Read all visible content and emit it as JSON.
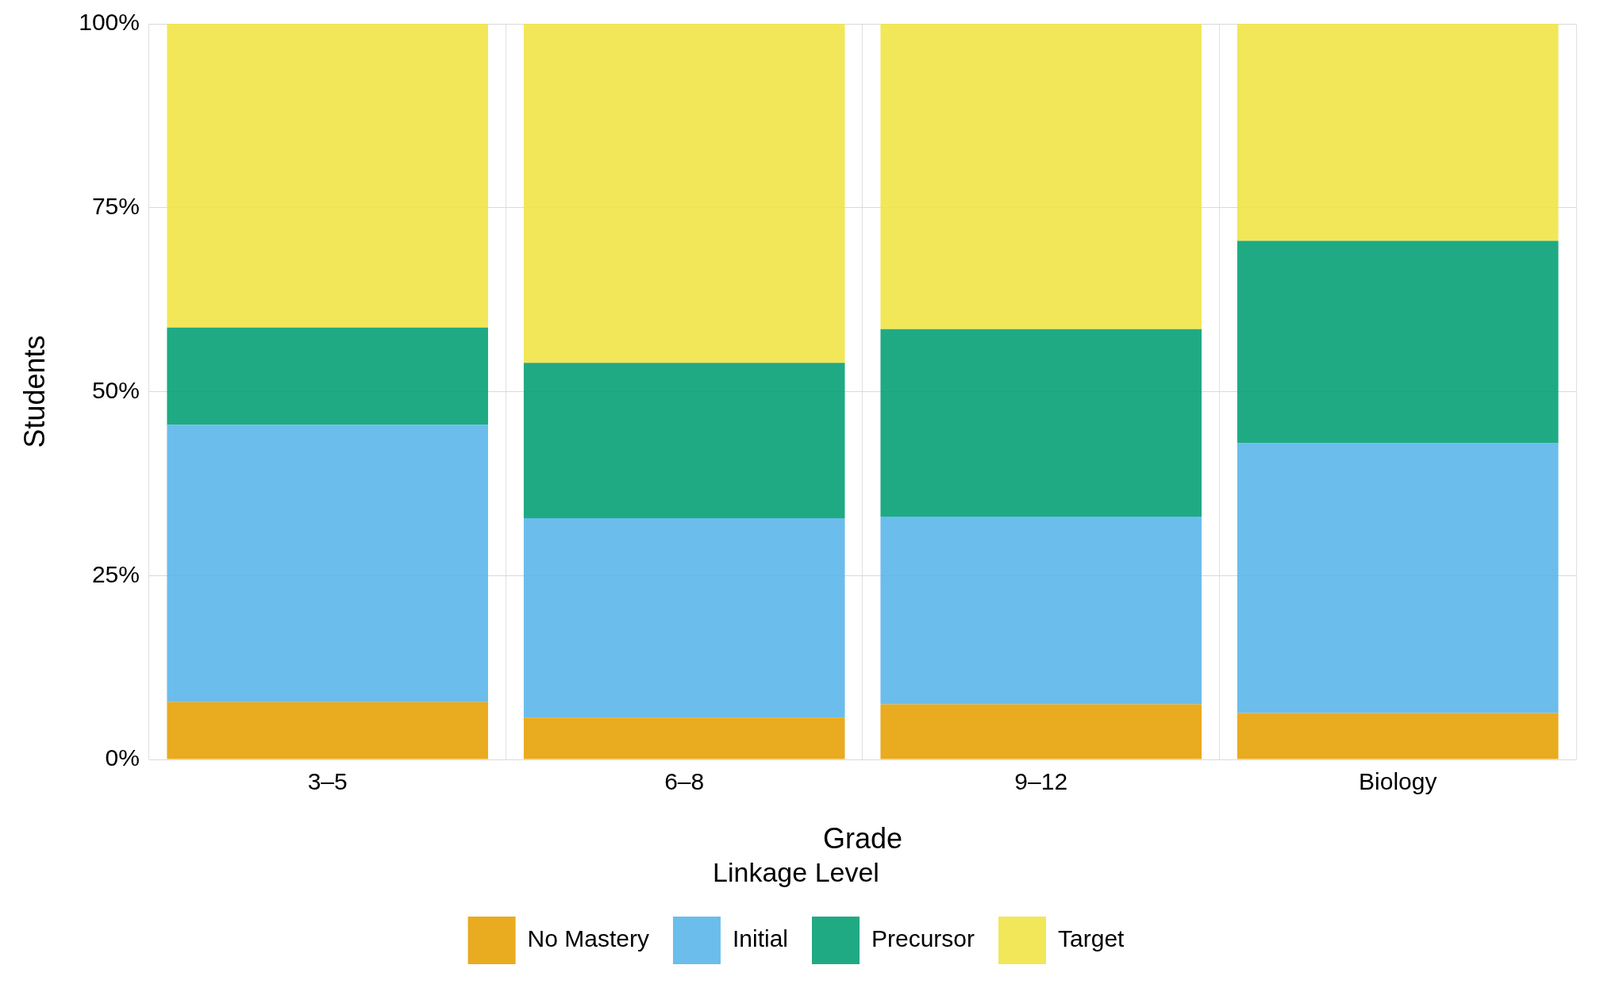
{
  "chart_data": {
    "type": "bar",
    "stacked": true,
    "x_label": "Grade",
    "y_label": "Students",
    "legend_title": "Linkage Level",
    "legend": "bottom",
    "grid": true,
    "categories": [
      "3–5",
      "6–8",
      "9–12",
      "Biology"
    ],
    "series": [
      {
        "name": "No Mastery",
        "color": "#E69F00",
        "values": [
          7.8,
          5.7,
          7.5,
          6.3
        ]
      },
      {
        "name": "Initial",
        "color": "#56B4E9",
        "values": [
          37.7,
          27.1,
          25.5,
          36.7
        ]
      },
      {
        "name": "Precursor",
        "color": "#009E73",
        "values": [
          13.2,
          21.1,
          25.5,
          27.5
        ]
      },
      {
        "name": "Target",
        "color": "#F0E442",
        "values": [
          41.3,
          46.1,
          41.5,
          29.5
        ]
      }
    ],
    "ylim": [
      0,
      100
    ],
    "yticks": [
      {
        "value": 0,
        "label": "0%"
      },
      {
        "value": 25,
        "label": "25%"
      },
      {
        "value": 50,
        "label": "50%"
      },
      {
        "value": 75,
        "label": "75%"
      },
      {
        "value": 100,
        "label": "100%"
      }
    ]
  }
}
